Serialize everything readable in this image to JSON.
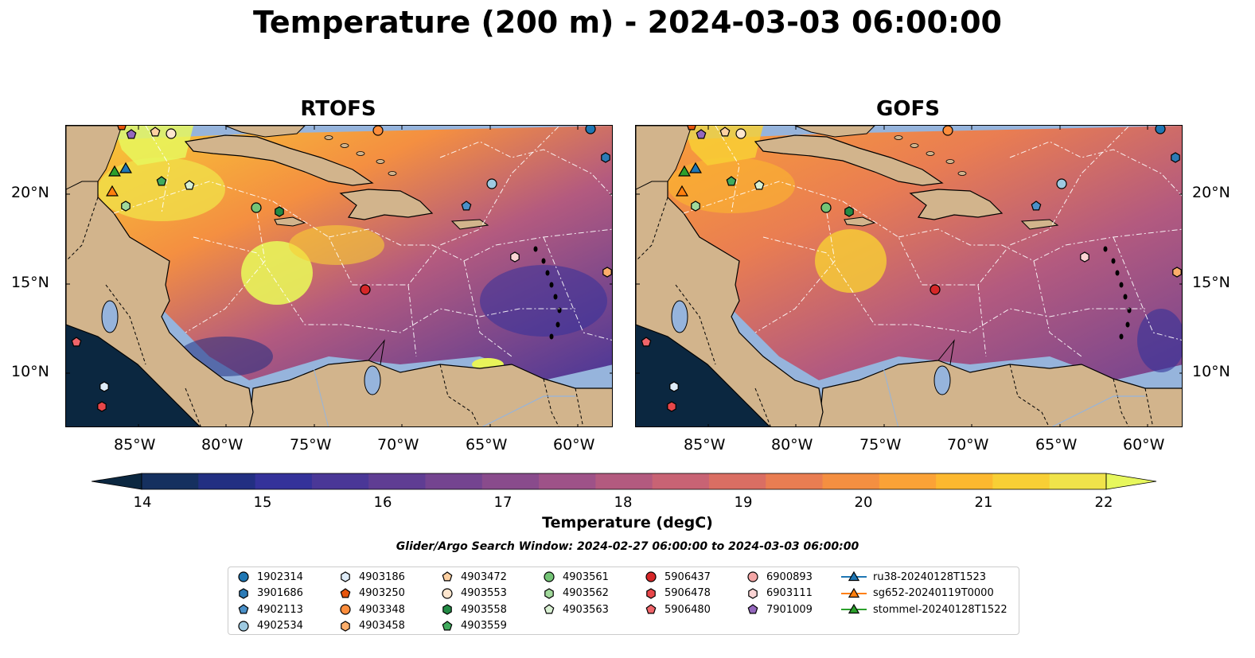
{
  "title": "Temperature (200 m) - 2024-03-03 06:00:00",
  "panels": [
    {
      "title": "RTOFS"
    },
    {
      "title": "GOFS"
    }
  ],
  "axes": {
    "lon_ticks": [
      "85°W",
      "80°W",
      "75°W",
      "70°W",
      "65°W",
      "60°W"
    ],
    "lat_ticks": [
      "20°N",
      "15°N",
      "10°N"
    ]
  },
  "colorbar": {
    "ticks": [
      "14",
      "15",
      "16",
      "17",
      "18",
      "19",
      "20",
      "21",
      "22"
    ],
    "label": "Temperature (degC)",
    "range": [
      14,
      22
    ],
    "extend": "both",
    "colors": [
      "#0b2740",
      "#15305f",
      "#222f82",
      "#34329a",
      "#4a3797",
      "#5f3d93",
      "#744490",
      "#894b8c",
      "#9e5288",
      "#b35a7f",
      "#c86374",
      "#da6e63",
      "#e97d52",
      "#f48f41",
      "#fba236",
      "#fcb82f",
      "#f8cf35",
      "#f0e34a",
      "#e7f75d"
    ]
  },
  "search_window": "Glider/Argo Search Window: 2024-02-27 06:00:00 to 2024-03-03 06:00:00",
  "legend": {
    "items": [
      {
        "label": "1902314",
        "marker": "circle",
        "color": "#1f77b4"
      },
      {
        "label": "3901686",
        "marker": "hexagon",
        "color": "#2c7bb6"
      },
      {
        "label": "4902113",
        "marker": "pentagon",
        "color": "#4a90c8"
      },
      {
        "label": "4902534",
        "marker": "circle",
        "color": "#9ecae1"
      },
      {
        "label": "4903186",
        "marker": "hexagon",
        "color": "#deebf7"
      },
      {
        "label": "4903250",
        "marker": "pentagon",
        "color": "#e6550d"
      },
      {
        "label": "4903348",
        "marker": "circle",
        "color": "#fd8d3c"
      },
      {
        "label": "4903458",
        "marker": "hexagon",
        "color": "#fdae6b"
      },
      {
        "label": "4903472",
        "marker": "pentagon",
        "color": "#fdd0a2"
      },
      {
        "label": "4903553",
        "marker": "circle",
        "color": "#fee6ce"
      },
      {
        "label": "4903558",
        "marker": "hexagon",
        "color": "#238b45"
      },
      {
        "label": "4903559",
        "marker": "pentagon",
        "color": "#41ab5d"
      },
      {
        "label": "4903561",
        "marker": "circle",
        "color": "#74c476"
      },
      {
        "label": "4903562",
        "marker": "hexagon",
        "color": "#a1d99b"
      },
      {
        "label": "4903563",
        "marker": "pentagon",
        "color": "#d9f0d3"
      },
      {
        "label": "5906437",
        "marker": "circle",
        "color": "#d62728"
      },
      {
        "label": "5906478",
        "marker": "hexagon",
        "color": "#e8474a"
      },
      {
        "label": "5906480",
        "marker": "pentagon",
        "color": "#f0656a"
      },
      {
        "label": "6900893",
        "marker": "circle",
        "color": "#f4a6a6"
      },
      {
        "label": "6903111",
        "marker": "hexagon",
        "color": "#fbd4d4"
      },
      {
        "label": "7901009",
        "marker": "pentagon",
        "color": "#9467bd"
      },
      {
        "label": "ru38-20240128T1523",
        "marker": "triangle-line",
        "color": "#1f77b4"
      },
      {
        "label": "sg652-20240119T0000",
        "marker": "triangle-line",
        "color": "#ff7f0e"
      },
      {
        "label": "stommel-20240128T1522",
        "marker": "triangle-line",
        "color": "#2ca02c"
      }
    ]
  }
}
